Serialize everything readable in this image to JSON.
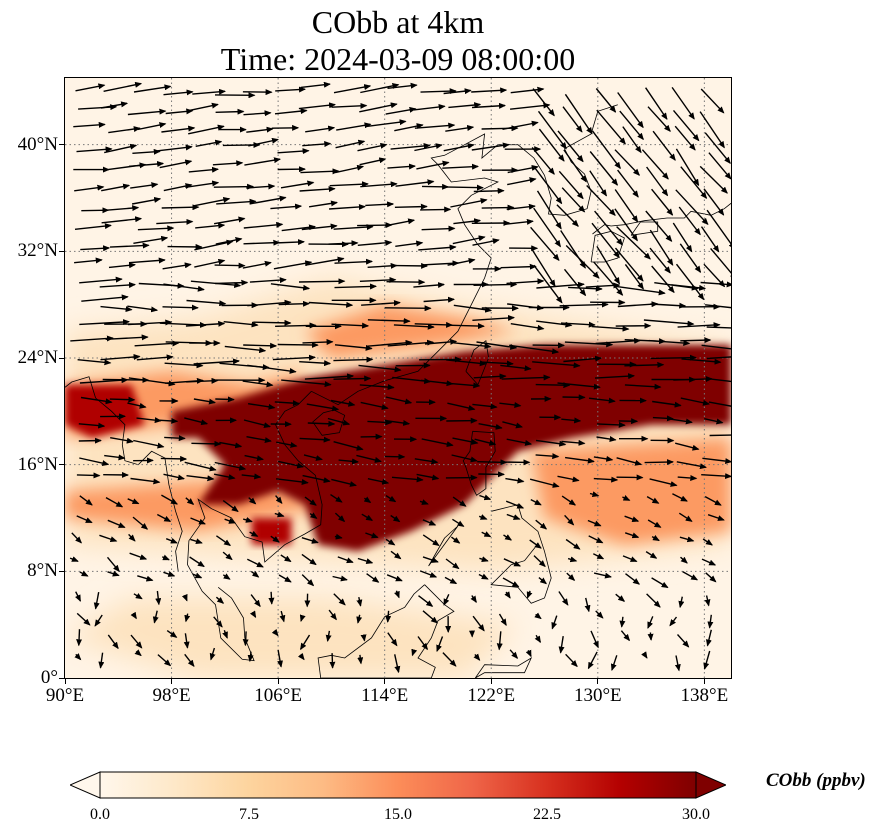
{
  "title": {
    "line1": "CObb at 4km",
    "line2": "Time: 2024-03-09 08:00:00"
  },
  "map": {
    "projection": "PlateCarree",
    "lon_range": [
      90,
      140
    ],
    "lat_range": [
      0,
      45
    ],
    "gridlines": "dotted",
    "lat_ticks": [
      {
        "value": 0,
        "label": "0°"
      },
      {
        "value": 8,
        "label": "8°N"
      },
      {
        "value": 16,
        "label": "16°N"
      },
      {
        "value": 24,
        "label": "24°N"
      },
      {
        "value": 32,
        "label": "32°N"
      },
      {
        "value": 40,
        "label": "40°N"
      }
    ],
    "lon_ticks": [
      {
        "value": 90,
        "label": "90°E"
      },
      {
        "value": 98,
        "label": "98°E"
      },
      {
        "value": 106,
        "label": "106°E"
      },
      {
        "value": 114,
        "label": "114°E"
      },
      {
        "value": 122,
        "label": "122°E"
      },
      {
        "value": 130,
        "label": "130°E"
      },
      {
        "value": 138,
        "label": "138°E"
      }
    ],
    "plume_color": "#7f0000",
    "background_color": "#fff4e6",
    "coastline_color": "#000000",
    "wind_arrow_color": "#000000"
  },
  "colorbar": {
    "title": "CObb (ppbv)",
    "vmin": 0.0,
    "vmax": 30.0,
    "extend": "both",
    "colormap": [
      "#fff7ec",
      "#fee8c8",
      "#fdd49e",
      "#fdbb84",
      "#fc8d59",
      "#ef6548",
      "#d7301f",
      "#b30000",
      "#7f0000"
    ],
    "ticks": [
      {
        "value": 0.0,
        "label": "0.0"
      },
      {
        "value": 7.5,
        "label": "7.5"
      },
      {
        "value": 15.0,
        "label": "15.0"
      },
      {
        "value": 22.5,
        "label": "22.5"
      },
      {
        "value": 30.0,
        "label": "30.0"
      }
    ]
  }
}
